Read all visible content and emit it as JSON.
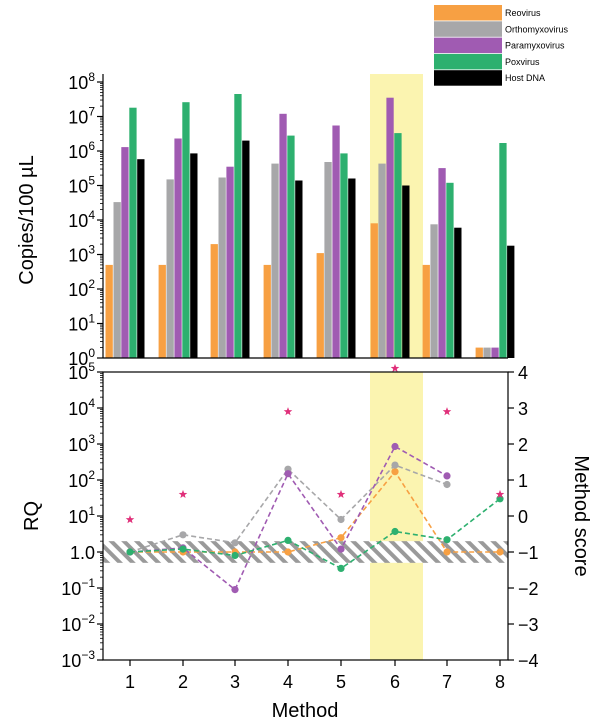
{
  "chart_data": [
    {
      "type": "bar",
      "ylabel": "Copies/100 µL",
      "yscale": "log",
      "ylim": [
        1,
        100000000
      ],
      "yticks": [
        {
          "base": "10",
          "exp": "0"
        },
        {
          "base": "10",
          "exp": "1"
        },
        {
          "base": "10",
          "exp": "2"
        },
        {
          "base": "10",
          "exp": "3"
        },
        {
          "base": "10",
          "exp": "4"
        },
        {
          "base": "10",
          "exp": "5"
        },
        {
          "base": "10",
          "exp": "6"
        },
        {
          "base": "10",
          "exp": "7"
        },
        {
          "base": "10",
          "exp": "8"
        }
      ],
      "categories": [
        "1",
        "2",
        "3",
        "4",
        "5",
        "6",
        "7",
        "8"
      ],
      "highlight_category": "6",
      "highlight_color": "#fbf4b0",
      "legend_position": "top-right",
      "series": [
        {
          "name": "Reovirus",
          "color": "#f7a043",
          "values": [
            500,
            500,
            2000,
            500,
            1100,
            8000,
            500,
            2
          ]
        },
        {
          "name": "Orthomyxovirus",
          "color": "#a7a7a9",
          "values": [
            33000,
            150000,
            170000,
            430000,
            480000,
            430000,
            7500,
            2
          ]
        },
        {
          "name": "Paramyxovirus",
          "color": "#a05bb2",
          "values": [
            1300000,
            2300000,
            350000,
            12000000,
            5500000,
            35000000,
            320000,
            2
          ]
        },
        {
          "name": "Poxvirus",
          "color": "#2db06f",
          "values": [
            18000000,
            26000000,
            45000000,
            2800000,
            850000,
            3300000,
            120000,
            1700000
          ]
        },
        {
          "name": "Host DNA",
          "color": "#000000",
          "values": [
            580000,
            850000,
            2000000,
            140000,
            160000,
            100000,
            6000,
            1800
          ]
        }
      ]
    },
    {
      "type": "line",
      "ylabel": "RQ",
      "y2label": "Method score",
      "xlabel": "Method",
      "yscale": "log",
      "ylim": [
        0.001,
        100000
      ],
      "yticks": [
        {
          "base": "10",
          "exp": "−3"
        },
        {
          "base": "10",
          "exp": "−2"
        },
        {
          "base": "10",
          "exp": "−1"
        },
        {
          "base": "1.0",
          "exp": ""
        },
        {
          "base": "10",
          "exp": "1"
        },
        {
          "base": "10",
          "exp": "2"
        },
        {
          "base": "10",
          "exp": "3"
        },
        {
          "base": "10",
          "exp": "4"
        },
        {
          "base": "10",
          "exp": "5"
        }
      ],
      "y2lim": [
        -4,
        4
      ],
      "y2ticks": [
        "4",
        "3",
        "2",
        "1",
        "0",
        "−1",
        "−2",
        "−3",
        "−4"
      ],
      "reference_band": [
        0.5,
        2
      ],
      "x": [
        "1",
        "2",
        "3",
        "4",
        "5",
        "6",
        "7",
        "8"
      ],
      "series": [
        {
          "name": "Reovirus",
          "color": "#f7a043",
          "values": [
            1,
            1,
            1,
            1,
            2.5,
            170,
            1,
            1
          ]
        },
        {
          "name": "Orthomyxovirus",
          "color": "#a7a7a9",
          "values": [
            1,
            3,
            1.8,
            200,
            8,
            260,
            75,
            null
          ]
        },
        {
          "name": "Paramyxovirus",
          "color": "#a05bb2",
          "values": [
            1,
            1.3,
            0.09,
            150,
            1.2,
            850,
            130,
            null
          ]
        },
        {
          "name": "Poxvirus",
          "color": "#2db06f",
          "values": [
            1,
            1.2,
            0.8,
            2.1,
            0.35,
            3.7,
            2.2,
            30
          ]
        }
      ],
      "method_score": {
        "color": "#e0307a",
        "marker": "star",
        "values": [
          -0.1,
          0.6,
          null,
          2.9,
          0.6,
          4.1,
          2.9,
          0.6
        ]
      }
    }
  ]
}
